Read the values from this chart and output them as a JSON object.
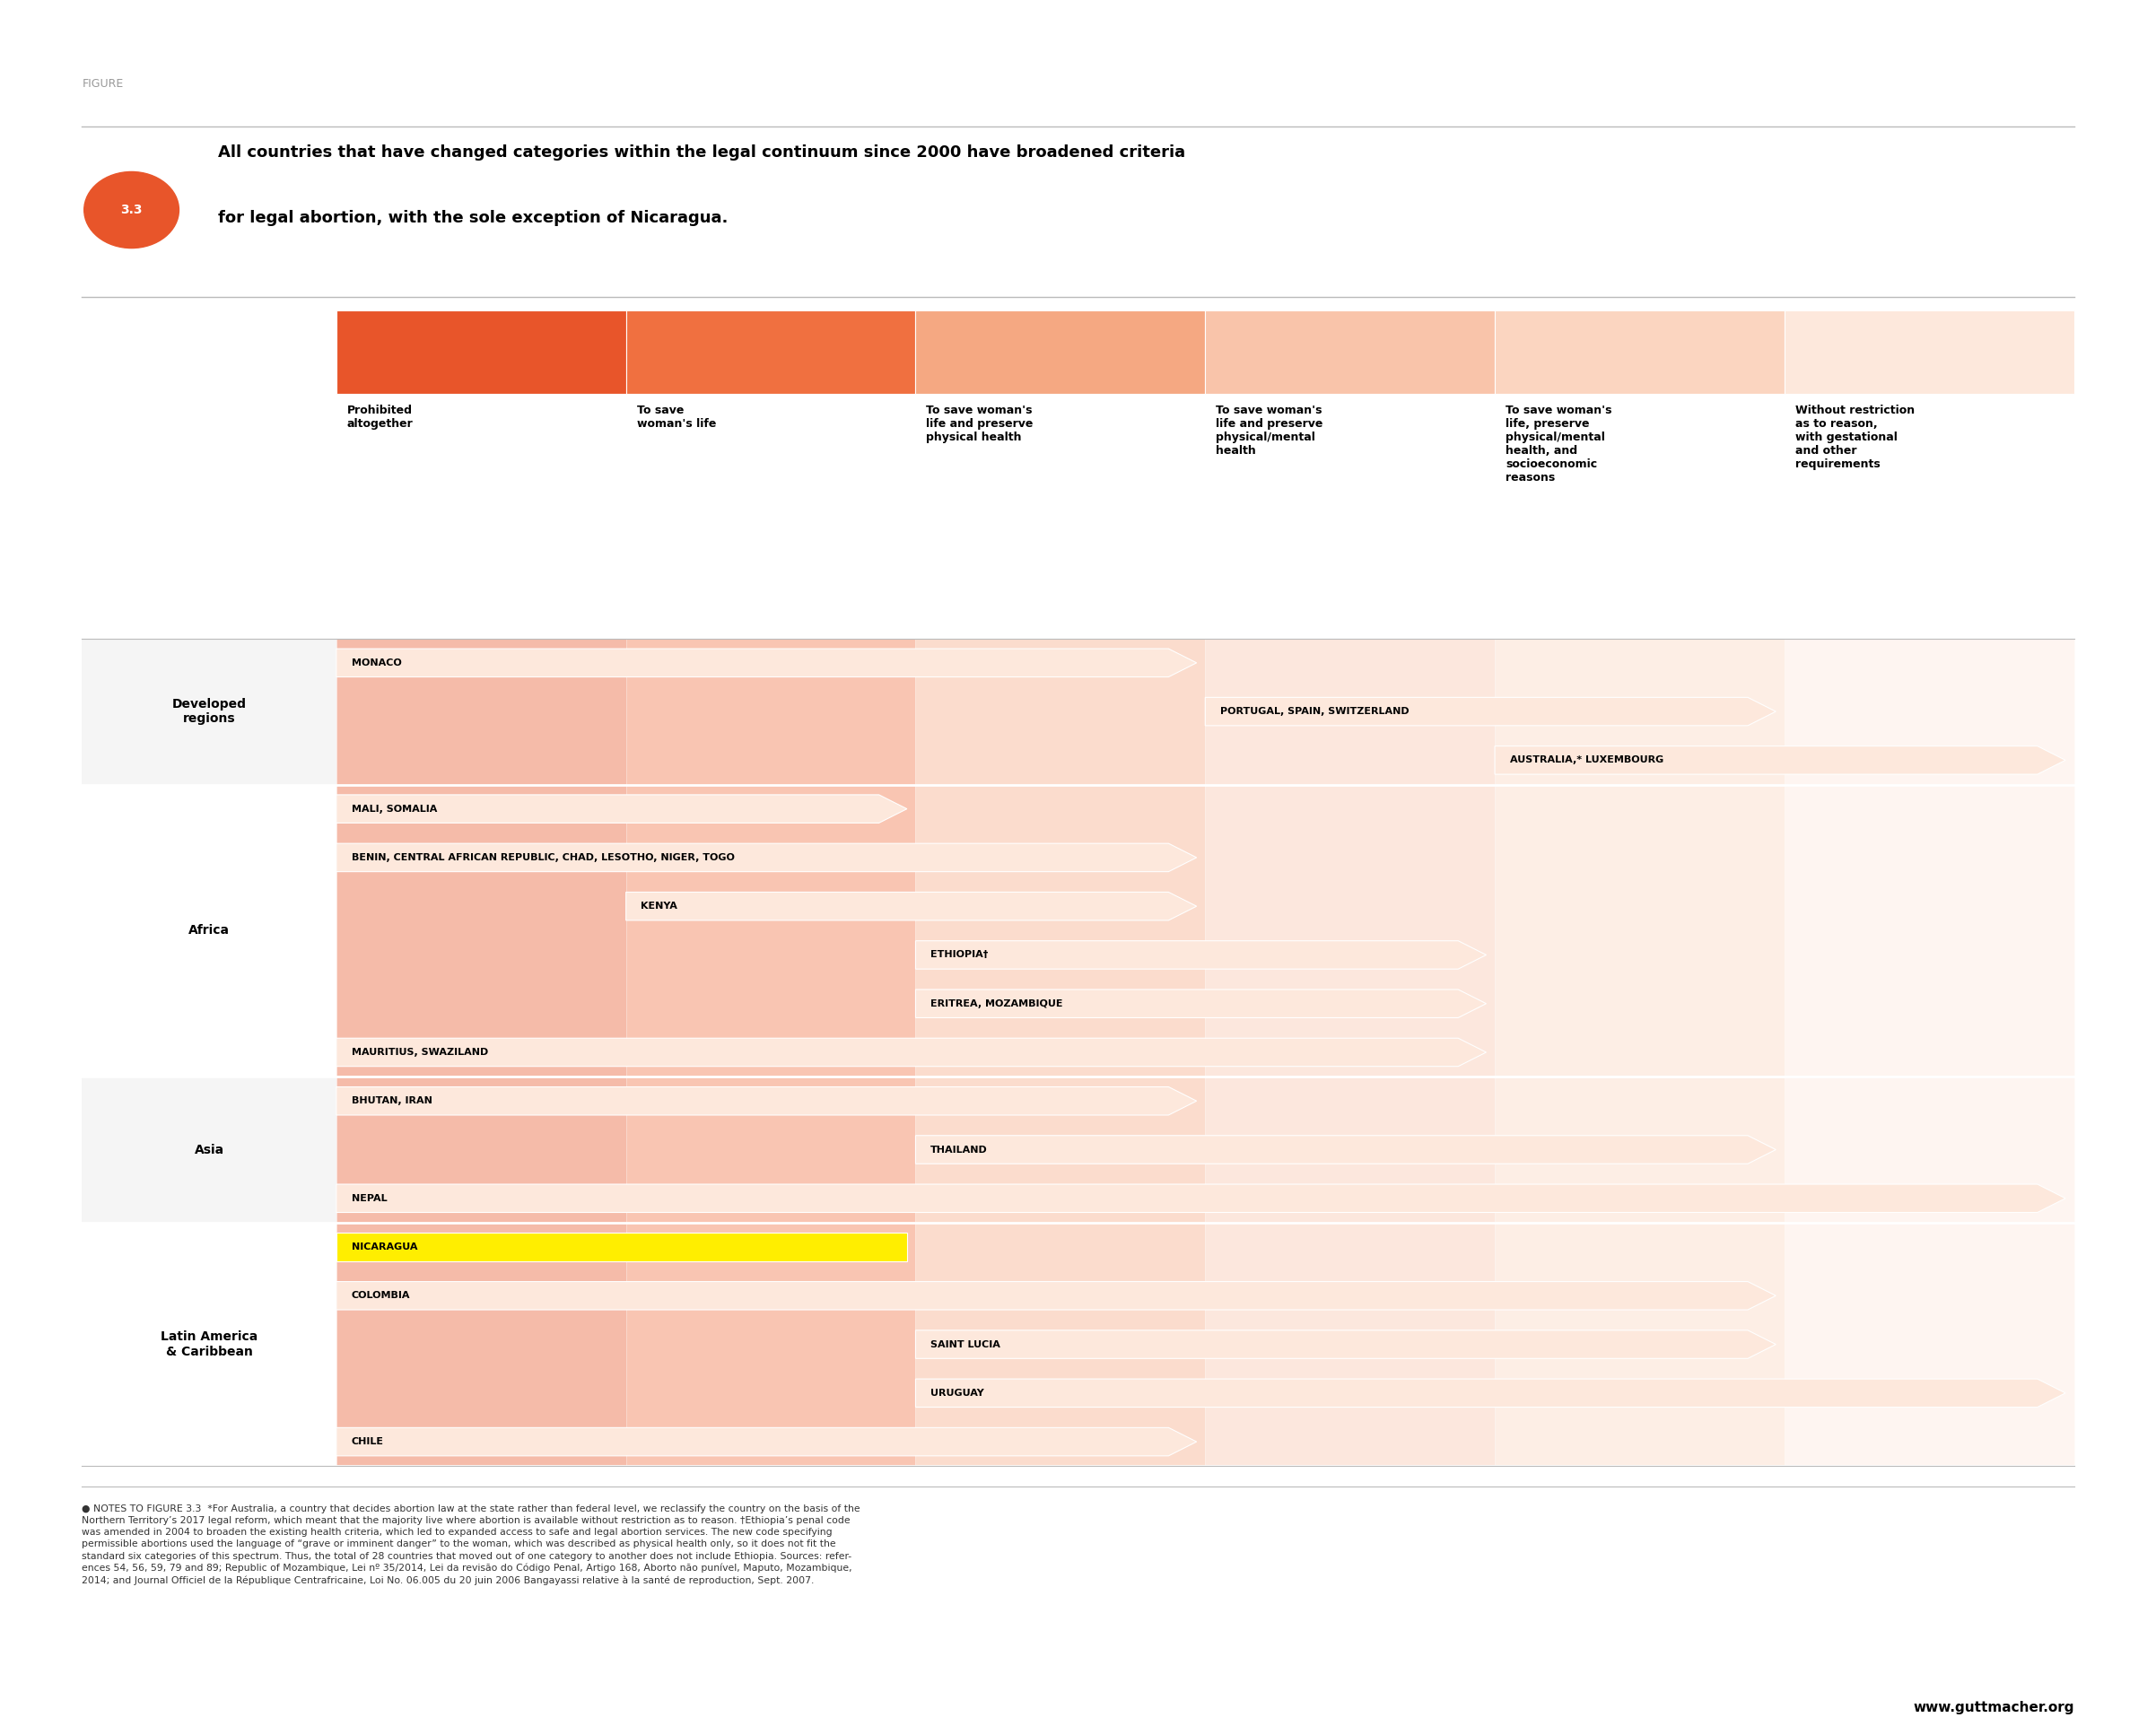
{
  "title_label": "FIGURE",
  "title_line1": "All countries that have changed categories within the legal continuum since 2000 have broadened criteria",
  "title_line2": "for legal abortion, with the sole exception of Nicaragua.",
  "figure_number": "3.3",
  "col_colors": [
    "#e8552a",
    "#f07040",
    "#f5a882",
    "#f9c4aa",
    "#fbd5c0",
    "#fde8dc"
  ],
  "col_headers": [
    "Prohibited\naltogether",
    "To save\nwoman's life",
    "To save woman's\nlife and preserve\nphysical health",
    "To save woman's\nlife and preserve\nphysical/mental\nhealth",
    "To save woman's\nlife, preserve\nphysical/mental\nhealth, and\nsocioeconomic\nreasons",
    "Without restriction\nas to reason,\nwith gestational\nand other\nrequirements"
  ],
  "row_groups": [
    {
      "group": "Developed\nregions",
      "rows": [
        {
          "label": "MONACO",
          "start": 0,
          "end": 2,
          "arrow": true,
          "color": "#fde8dc",
          "text_color": "#000000"
        },
        {
          "label": "PORTUGAL, SPAIN, SWITZERLAND",
          "start": 3,
          "end": 4,
          "arrow": true,
          "color": "#fde8dc",
          "text_color": "#000000"
        },
        {
          "label": "AUSTRALIA,* LUXEMBOURG",
          "start": 4,
          "end": 5,
          "arrow": true,
          "color": "#fde8dc",
          "text_color": "#000000"
        }
      ]
    },
    {
      "group": "Africa",
      "rows": [
        {
          "label": "MALI, SOMALIA",
          "start": 0,
          "end": 1,
          "arrow": true,
          "color": "#fde8dc",
          "text_color": "#000000"
        },
        {
          "label": "BENIN, CENTRAL AFRICAN REPUBLIC, CHAD, LESOTHO, NIGER, TOGO",
          "start": 0,
          "end": 2,
          "arrow": true,
          "color": "#fde8dc",
          "text_color": "#000000"
        },
        {
          "label": "KENYA",
          "start": 1,
          "end": 2,
          "arrow": true,
          "color": "#fde8dc",
          "text_color": "#000000"
        },
        {
          "label": "ETHIOPIA†",
          "start": 2,
          "end": 3,
          "arrow": true,
          "color": "#fde8dc",
          "text_color": "#000000"
        },
        {
          "label": "ERITREA, MOZAMBIQUE",
          "start": 2,
          "end": 3,
          "arrow": true,
          "color": "#fde8dc",
          "text_color": "#000000"
        },
        {
          "label": "MAURITIUS, SWAZILAND",
          "start": 0,
          "end": 3,
          "arrow": true,
          "color": "#fde8dc",
          "text_color": "#000000"
        }
      ]
    },
    {
      "group": "Asia",
      "rows": [
        {
          "label": "BHUTAN, IRAN",
          "start": 0,
          "end": 2,
          "arrow": true,
          "color": "#fde8dc",
          "text_color": "#000000"
        },
        {
          "label": "THAILAND",
          "start": 2,
          "end": 4,
          "arrow": true,
          "color": "#fde8dc",
          "text_color": "#000000"
        },
        {
          "label": "NEPAL",
          "start": 0,
          "end": 5,
          "arrow": true,
          "color": "#fde8dc",
          "text_color": "#000000"
        }
      ]
    },
    {
      "group": "Latin America\n& Caribbean",
      "rows": [
        {
          "label": "NICARAGUA",
          "start": 0,
          "end": 1,
          "arrow": false,
          "color": "#ffee00",
          "text_color": "#000000"
        },
        {
          "label": "COLOMBIA",
          "start": 0,
          "end": 4,
          "arrow": true,
          "color": "#fde8dc",
          "text_color": "#000000"
        },
        {
          "label": "SAINT LUCIA",
          "start": 2,
          "end": 4,
          "arrow": true,
          "color": "#fde8dc",
          "text_color": "#000000"
        },
        {
          "label": "URUGUAY",
          "start": 2,
          "end": 5,
          "arrow": true,
          "color": "#fde8dc",
          "text_color": "#000000"
        },
        {
          "label": "CHILE",
          "start": 0,
          "end": 2,
          "arrow": true,
          "color": "#fde8dc",
          "text_color": "#000000"
        }
      ]
    }
  ],
  "website": "www.guttmacher.org",
  "background_color": "#ffffff"
}
